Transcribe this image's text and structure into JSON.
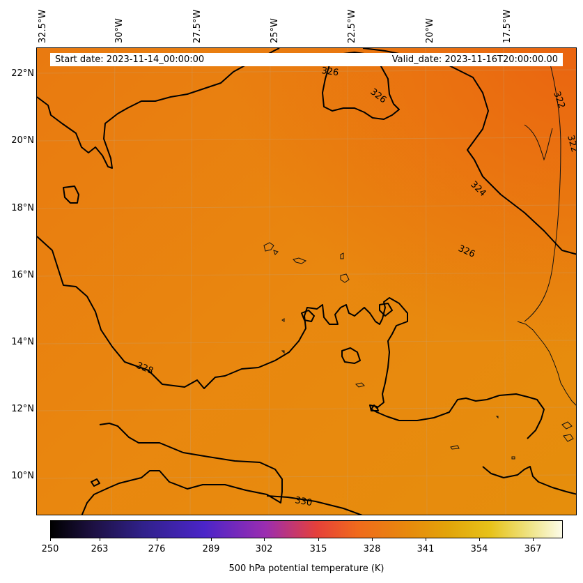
{
  "map": {
    "longitude_labels": [
      "32.5°W",
      "30°W",
      "27.5°W",
      "25°W",
      "22.5°W",
      "20°W",
      "17.5°W"
    ],
    "latitude_labels": [
      "22°N",
      "20°N",
      "18°N",
      "16°N",
      "14°N",
      "12°N",
      "10°N"
    ],
    "start_date": "Start date: 2023-11-14_00:00:00",
    "valid_date": "Valid_date: 2023-11-16T20:00:00.00",
    "contour_labels": [
      "326",
      "326",
      "322",
      "322",
      "324",
      "326",
      "328",
      "330"
    ],
    "colorbar": {
      "ticks": [
        "250",
        "263",
        "276",
        "289",
        "302",
        "315",
        "328",
        "341",
        "354",
        "367"
      ],
      "title": "500 hPa potential temperature (K)"
    },
    "colors": {
      "field_base": "#e98912",
      "field_warm": "#ea6e10",
      "contour": "#000000"
    }
  }
}
